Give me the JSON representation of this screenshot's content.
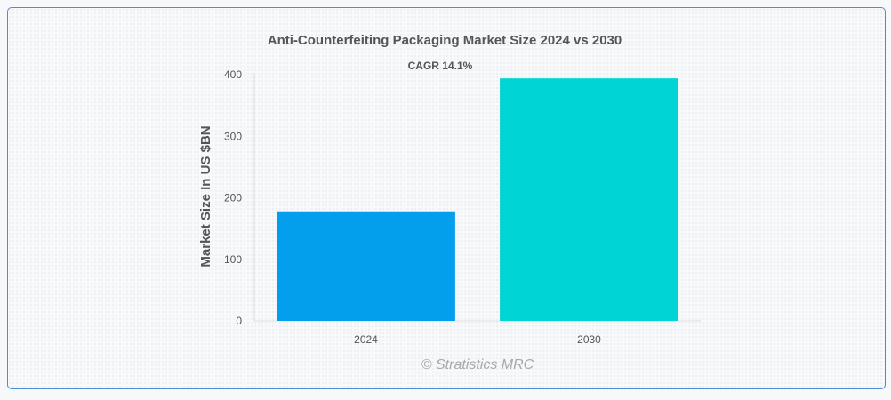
{
  "chart_data": {
    "type": "bar",
    "title": "Anti-Counterfeiting Packaging Market Size 2024 vs 2030",
    "xlabel": "",
    "ylabel": "Market Size In US $BN",
    "categories": [
      "2024",
      "2030"
    ],
    "values": [
      178,
      394
    ],
    "ylim": [
      0,
      400
    ],
    "yticks": [
      0,
      100,
      200,
      300,
      400
    ],
    "annotation": "CAGR 14.1%",
    "bar_colors": [
      "#039fec",
      "#00d4d4"
    ],
    "grid": false,
    "legend": "none"
  },
  "watermark": "© Stratistics MRC"
}
